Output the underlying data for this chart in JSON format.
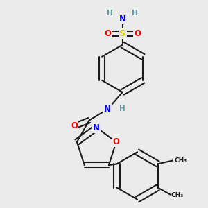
{
  "bg_color": "#ebebeb",
  "bond_color": "#1a1a1a",
  "colors": {
    "N": "#0000ff",
    "O": "#ff0000",
    "S": "#cccc00",
    "H": "#5f9ea0",
    "C": "#1a1a1a"
  },
  "bond_width": 1.5,
  "font_size": 8.5
}
